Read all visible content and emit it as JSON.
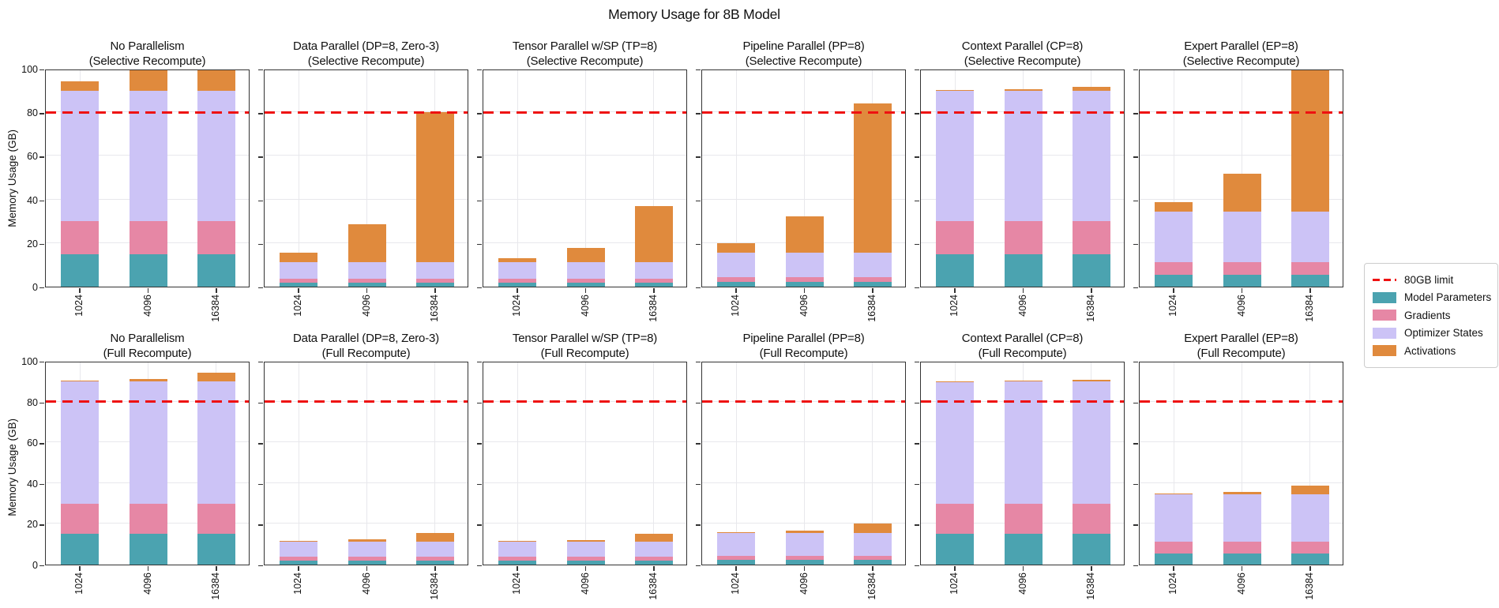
{
  "chart_data": {
    "type": "bar",
    "stacked": true,
    "title": "Memory Usage for 8B Model",
    "ylabel": "Memory Usage (GB)",
    "ylim": [
      0,
      100
    ],
    "yticks": [
      0,
      20,
      40,
      60,
      80,
      100
    ],
    "grid": true,
    "categories": [
      "1024",
      "4096",
      "16384"
    ],
    "series_names": [
      "Model Parameters",
      "Gradients",
      "Optimizer States",
      "Activations"
    ],
    "colors": {
      "Model Parameters": "#4ba3b0",
      "Gradients": "#e687a5",
      "Optimizer States": "#ccc3f6",
      "Activations": "#e08a3d"
    },
    "limit_line": {
      "label": "80GB limit",
      "value": 80,
      "color": "#ee1111"
    },
    "legend": {
      "position": "right",
      "items": [
        {
          "label": "80GB limit",
          "type": "dash",
          "color": "#ee1111"
        },
        {
          "label": "Model Parameters",
          "type": "patch",
          "color": "#4ba3b0"
        },
        {
          "label": "Gradients",
          "type": "patch",
          "color": "#e687a5"
        },
        {
          "label": "Optimizer States",
          "type": "patch",
          "color": "#ccc3f6"
        },
        {
          "label": "Activations",
          "type": "patch",
          "color": "#e08a3d"
        }
      ]
    },
    "subplots": [
      {
        "row": 0,
        "title": [
          "No Parallelism",
          "(Selective Recompute)"
        ],
        "values": {
          "Model Parameters": [
            15,
            15,
            15
          ],
          "Gradients": [
            15,
            15,
            15
          ],
          "Optimizer States": [
            60,
            60,
            60
          ],
          "Activations": [
            4.3,
            17.2,
            68.7
          ]
        }
      },
      {
        "row": 0,
        "title": [
          "Data Parallel (DP=8, Zero-3)",
          "(Selective Recompute)"
        ],
        "values": {
          "Model Parameters": [
            1.9,
            1.9,
            1.9
          ],
          "Gradients": [
            1.9,
            1.9,
            1.9
          ],
          "Optimizer States": [
            7.5,
            7.5,
            7.5
          ],
          "Activations": [
            4.3,
            17.2,
            68.6
          ]
        }
      },
      {
        "row": 0,
        "title": [
          "Tensor Parallel w/SP (TP=8)",
          "(Selective Recompute)"
        ],
        "values": {
          "Model Parameters": [
            1.9,
            1.9,
            1.9
          ],
          "Gradients": [
            1.9,
            1.9,
            1.9
          ],
          "Optimizer States": [
            7.5,
            7.5,
            7.5
          ],
          "Activations": [
            1.6,
            6.4,
            25.8
          ]
        }
      },
      {
        "row": 0,
        "title": [
          "Pipeline Parallel (PP=8)",
          "(Selective Recompute)"
        ],
        "values": {
          "Model Parameters": [
            2.2,
            2.2,
            2.2
          ],
          "Gradients": [
            2.2,
            2.2,
            2.2
          ],
          "Optimizer States": [
            11.3,
            11.3,
            11.3
          ],
          "Activations": [
            4.3,
            16.5,
            68.5
          ]
        }
      },
      {
        "row": 0,
        "title": [
          "Context Parallel (CP=8)",
          "(Selective Recompute)"
        ],
        "values": {
          "Model Parameters": [
            15,
            15,
            15
          ],
          "Gradients": [
            15,
            15,
            15
          ],
          "Optimizer States": [
            60,
            60,
            60
          ],
          "Activations": [
            0.2,
            0.5,
            1.6
          ]
        }
      },
      {
        "row": 0,
        "title": [
          "Expert Parallel (EP=8)",
          "(Selective Recompute)"
        ],
        "values": {
          "Model Parameters": [
            5.6,
            5.6,
            5.6
          ],
          "Gradients": [
            5.6,
            5.6,
            5.6
          ],
          "Optimizer States": [
            23.3,
            23.3,
            23.3
          ],
          "Activations": [
            4.3,
            17.2,
            68.7
          ]
        }
      },
      {
        "row": 1,
        "title": [
          "No Parallelism",
          "(Full Recompute)"
        ],
        "values": {
          "Model Parameters": [
            15,
            15,
            15
          ],
          "Gradients": [
            15,
            15,
            15
          ],
          "Optimizer States": [
            60,
            60,
            60
          ],
          "Activations": [
            0.3,
            1.1,
            4.3
          ]
        }
      },
      {
        "row": 1,
        "title": [
          "Data Parallel (DP=8, Zero-3)",
          "(Full Recompute)"
        ],
        "values": {
          "Model Parameters": [
            1.9,
            1.9,
            1.9
          ],
          "Gradients": [
            1.9,
            1.9,
            1.9
          ],
          "Optimizer States": [
            7.5,
            7.5,
            7.5
          ],
          "Activations": [
            0.3,
            1.1,
            4.3
          ]
        }
      },
      {
        "row": 1,
        "title": [
          "Tensor Parallel w/SP (TP=8)",
          "(Full Recompute)"
        ],
        "values": {
          "Model Parameters": [
            1.9,
            1.9,
            1.9
          ],
          "Gradients": [
            1.9,
            1.9,
            1.9
          ],
          "Optimizer States": [
            7.5,
            7.5,
            7.5
          ],
          "Activations": [
            0.2,
            0.9,
            4.0
          ]
        }
      },
      {
        "row": 1,
        "title": [
          "Pipeline Parallel (PP=8)",
          "(Full Recompute)"
        ],
        "values": {
          "Model Parameters": [
            2.2,
            2.2,
            2.2
          ],
          "Gradients": [
            2.2,
            2.2,
            2.2
          ],
          "Optimizer States": [
            11.3,
            11.3,
            11.3
          ],
          "Activations": [
            0.3,
            1.1,
            4.3
          ]
        }
      },
      {
        "row": 1,
        "title": [
          "Context Parallel (CP=8)",
          "(Full Recompute)"
        ],
        "values": {
          "Model Parameters": [
            15,
            15,
            15
          ],
          "Gradients": [
            15,
            15,
            15
          ],
          "Optimizer States": [
            60,
            60,
            60
          ],
          "Activations": [
            0.05,
            0.2,
            0.6
          ]
        }
      },
      {
        "row": 1,
        "title": [
          "Expert Parallel (EP=8)",
          "(Full Recompute)"
        ],
        "values": {
          "Model Parameters": [
            5.6,
            5.6,
            5.6
          ],
          "Gradients": [
            5.6,
            5.6,
            5.6
          ],
          "Optimizer States": [
            23.3,
            23.3,
            23.3
          ],
          "Activations": [
            0.3,
            1.1,
            4.3
          ]
        }
      }
    ]
  }
}
